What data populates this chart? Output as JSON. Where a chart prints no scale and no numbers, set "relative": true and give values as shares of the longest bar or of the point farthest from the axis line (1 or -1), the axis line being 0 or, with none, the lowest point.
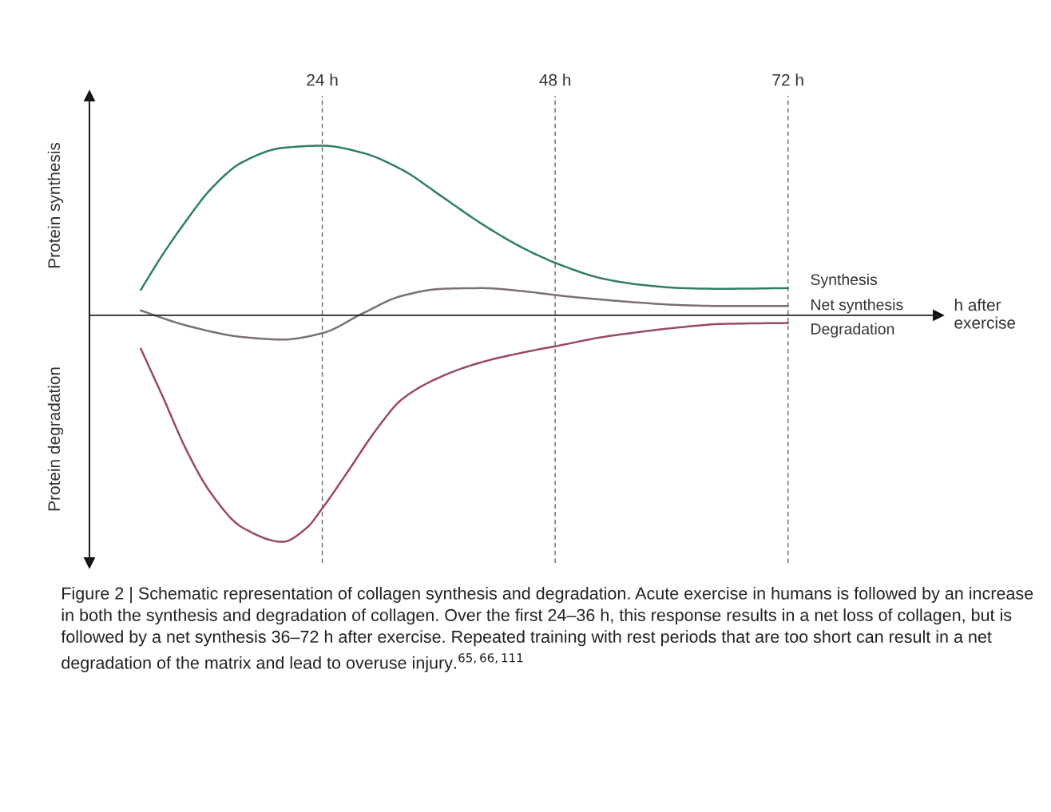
{
  "chart_data": {
    "type": "line",
    "relative": true,
    "xlabel": "h after exercise",
    "ylabel": "Protein synthesis",
    "y2label": "Protein degradation",
    "xlim": [
      0,
      87.5
    ],
    "xticks": [
      {
        "value": 24,
        "label": "24 h"
      },
      {
        "value": 48,
        "label": "48 h"
      },
      {
        "value": 72,
        "label": "72 h"
      }
    ],
    "tick_labels": "x",
    "grid": "x",
    "legend": false,
    "marker": "none",
    "line_style": "solid",
    "series": [
      {
        "name": "Synthesis",
        "color": "#2f7f68",
        "x": [
          5.3,
          7.5,
          10.0,
          12.5,
          15.8,
          19.9,
          24.0,
          28.1,
          32.2,
          36.4,
          40.5,
          44.6,
          48.7,
          52.9,
          57.0,
          61.1,
          65.2,
          72.0
        ],
        "values": [
          0.113,
          0.265,
          0.419,
          0.557,
          0.677,
          0.739,
          0.749,
          0.718,
          0.643,
          0.522,
          0.402,
          0.299,
          0.22,
          0.162,
          0.134,
          0.12,
          0.117,
          0.12
        ]
      },
      {
        "name": "Net synthesis",
        "color": "#7b7074",
        "x": [
          5.3,
          10.0,
          15.8,
          19.9,
          24.0,
          28.1,
          32.2,
          36.4,
          40.5,
          44.6,
          48.7,
          52.9,
          57.0,
          61.1,
          65.2,
          72.0
        ],
        "values": [
          0.021,
          -0.045,
          -0.096,
          -0.107,
          -0.079,
          0.007,
          0.086,
          0.117,
          0.12,
          0.107,
          0.086,
          0.069,
          0.055,
          0.045,
          0.041,
          0.041
        ]
      },
      {
        "name": "Degradation",
        "color": "#9a4a5e",
        "x": [
          5.3,
          7.5,
          10.0,
          12.5,
          15.8,
          19.9,
          22.4,
          24.0,
          26.5,
          29.8,
          32.2,
          36.4,
          40.5,
          44.6,
          48.7,
          52.9,
          57.0,
          61.1,
          65.2,
          72.0
        ],
        "values": [
          -0.148,
          -0.354,
          -0.595,
          -0.784,
          -0.938,
          -1,
          -0.938,
          -0.852,
          -0.698,
          -0.491,
          -0.371,
          -0.268,
          -0.206,
          -0.165,
          -0.131,
          -0.096,
          -0.072,
          -0.052,
          -0.038,
          -0.034
        ]
      }
    ],
    "annotations": [
      "Figure 2 | Schematic representation of collagen synthesis and degradation. Acute exercise in humans is followed by an increase in both the synthesis and degradation of collagen. Over the first 24–36 h, this response results in a net loss of collagen, but is followed by a net synthesis 36–72 h after exercise. Repeated training with rest periods that are too short can result in a net degradation of the matrix and lead to overuse injury.$^{65,66,111}$"
    ]
  }
}
